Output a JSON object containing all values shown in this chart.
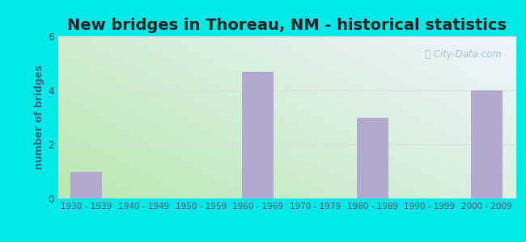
{
  "title": "New bridges in Thoreau, NM - historical statistics",
  "categories": [
    "1930 - 1939",
    "1940 - 1949",
    "1950 - 1959",
    "1960 - 1969",
    "1970 - 1979",
    "1980 - 1989",
    "1990 - 1999",
    "2000 - 2009"
  ],
  "values": [
    1,
    0,
    0,
    4.7,
    0,
    3.0,
    0,
    4
  ],
  "bar_color": "#b3a8d0",
  "ylabel": "number of bridges",
  "ylim": [
    0,
    6
  ],
  "yticks": [
    0,
    2,
    4,
    6
  ],
  "outer_bg": "#00e8e8",
  "plot_bg_topleft": "#c5e8c0",
  "plot_bg_bottomleft": "#b8e8b0",
  "plot_bg_right": "#e8eeff",
  "grid_color": "#dddddd",
  "title_fontsize": 14,
  "axis_label_fontsize": 9,
  "tick_fontsize": 7.5,
  "watermark_text": "City-Data.com",
  "watermark_color": "#99bbcc",
  "ylabel_color": "#336688"
}
